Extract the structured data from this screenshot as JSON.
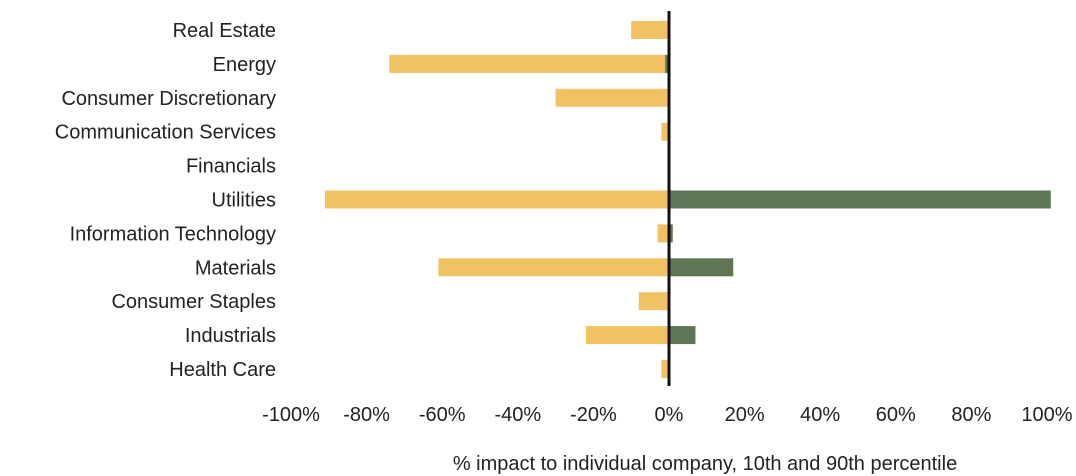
{
  "chart_data": {
    "type": "bar",
    "orientation": "horizontal",
    "categories": [
      "Real Estate",
      "Energy",
      "Consumer Discretionary",
      "Communication Services",
      "Financials",
      "Utilities",
      "Information Technology",
      "Materials",
      "Consumer Staples",
      "Industrials",
      "Health Care"
    ],
    "series": [
      {
        "values": [
          -10,
          -74,
          -30,
          -2,
          0,
          -91,
          -3,
          -61,
          -8,
          -22,
          -2
        ],
        "color": "#f0c264"
      },
      {
        "values": [
          0,
          -1,
          0,
          0,
          0,
          101,
          1,
          17,
          0,
          7,
          0
        ],
        "color": "#5e7654"
      }
    ],
    "xlim": [
      -100,
      100
    ],
    "xticks": [
      -100,
      -80,
      -60,
      -40,
      -20,
      0,
      20,
      40,
      60,
      80,
      100
    ],
    "tick_labels": [
      "-100%",
      "-80%",
      "-60%",
      "-40%",
      "-20%",
      "0%",
      "20%",
      "40%",
      "60%",
      "80%",
      "100%"
    ],
    "xlabel": "% impact to individual company, 10th and 90th percentile",
    "ylabel": "",
    "title": "",
    "grid": false,
    "legend": "none",
    "zero_line_color": "#111111"
  }
}
